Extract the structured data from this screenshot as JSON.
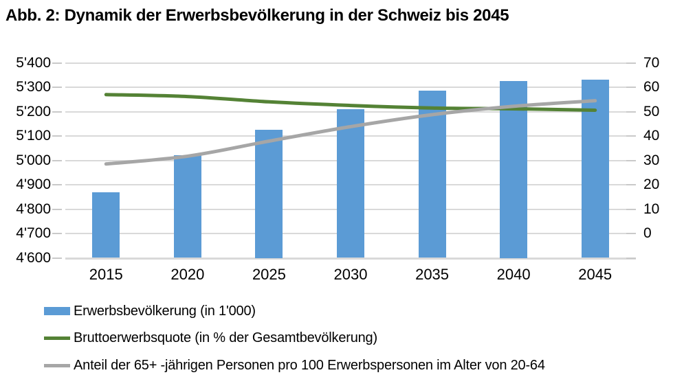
{
  "title": "Abb. 2: Dynamik der Erwerbsbevölkerung in der Schweiz bis 2045",
  "chart_data": {
    "type": "combo-bar-line",
    "categories": [
      "2015",
      "2020",
      "2025",
      "2030",
      "2035",
      "2040",
      "2045"
    ],
    "series": [
      {
        "id": "erwerbsbevoelkerung",
        "name": "Erwerbsbevölkerung (in 1'000)",
        "type": "bar",
        "axis": "left",
        "color": "#5B9BD5",
        "values": [
          4870,
          5020,
          5125,
          5210,
          5285,
          5325,
          5330
        ]
      },
      {
        "id": "bruttoerwerbsquote",
        "name": "Bruttoerwerbsquote (in % der Gesamtbevölkerung)",
        "type": "line",
        "axis": "right",
        "color": "#548235",
        "values": [
          58.6,
          57.9,
          56.0,
          54.7,
          53.8,
          53.5,
          53.0
        ]
      },
      {
        "id": "anteil-65plus",
        "name": "Anteil der 65+ -jährigen Personen pro 100 Erwerbspersonen im Alter von 20-64",
        "type": "line",
        "axis": "right",
        "color": "#A6A6A6",
        "values": [
          33.7,
          36.5,
          41.9,
          47.1,
          51.4,
          54.4,
          56.4
        ]
      }
    ],
    "left_axis": {
      "min": 4600,
      "max": 5400,
      "step": 100,
      "tick_labels": [
        "5'400",
        "5'300",
        "5'200",
        "5'100",
        "5'000",
        "4'900",
        "4'800",
        "4'700",
        "4'600"
      ]
    },
    "right_axis": {
      "min": 0,
      "max": 70,
      "step": 10,
      "tick_labels": [
        "70",
        "60",
        "50",
        "40",
        "30",
        "20",
        "10",
        "0"
      ]
    },
    "grid": true,
    "gridline_color": "#D9D9D9",
    "legend_position": "bottom-left"
  },
  "legend": {
    "items": [
      {
        "label": "Erwerbsbevölkerung (in 1'000)",
        "swatch": "bar",
        "color": "#5B9BD5"
      },
      {
        "label": "Bruttoerwerbsquote (in % der Gesamtbevölkerung)",
        "swatch": "line",
        "color": "#548235"
      },
      {
        "label": "Anteil der 65+ -jährigen Personen pro 100 Erwerbspersonen im Alter von 20-64",
        "swatch": "line",
        "color": "#A6A6A6"
      }
    ]
  }
}
